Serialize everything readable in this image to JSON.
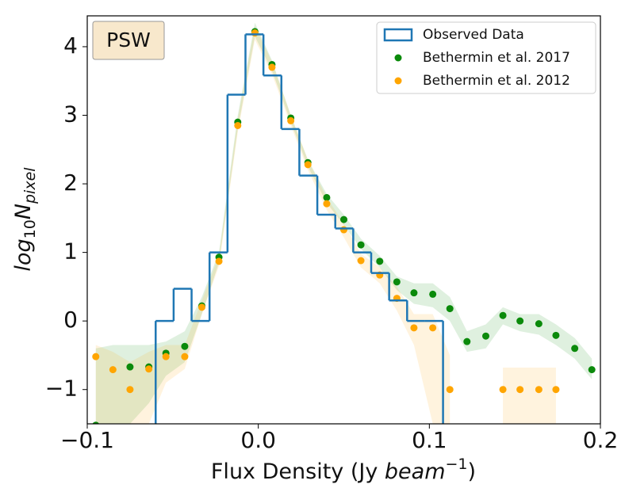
{
  "chart_data": {
    "type": "histogram",
    "annotation": "PSW",
    "xlabel": [
      "Flux Density (Jy ",
      "beam",
      "−1",
      ")"
    ],
    "ylabel": [
      "log",
      "10",
      "N",
      "pixel"
    ],
    "xlim": [
      -0.1,
      0.2
    ],
    "ylim": [
      -1.5,
      4.45
    ],
    "xticks": [
      {
        "value": -0.1,
        "label": "−0.1"
      },
      {
        "value": 0,
        "label": "0.0"
      },
      0.1,
      0.2
    ],
    "yticks": [
      {
        "value": -1,
        "label": "−1"
      },
      0,
      1,
      2,
      3,
      4
    ],
    "legend": "upper right",
    "histogram": {
      "name": "Observed Data",
      "color": "#1f77b4",
      "bins": [
        -0.06,
        -0.0495,
        -0.039,
        -0.0285,
        -0.018,
        -0.0075,
        0.003,
        0.0135,
        0.024,
        0.0345,
        0.045,
        0.0555,
        0.066,
        0.0765,
        0.087,
        0.0975,
        0.108
      ],
      "counts": [
        0,
        0.47,
        0,
        1.0,
        3.3,
        4.18,
        3.58,
        2.8,
        2.12,
        1.55,
        1.35,
        1.0,
        0.7,
        0.3,
        0,
        0
      ]
    },
    "x": [
      -0.095,
      -0.085,
      -0.075,
      -0.064,
      -0.054,
      -0.043,
      -0.033,
      -0.023,
      -0.012,
      -0.002,
      0.008,
      0.019,
      0.029,
      0.04,
      0.05,
      0.06,
      0.071,
      0.081,
      0.091,
      0.102,
      0.112,
      0.122,
      0.133,
      0.143,
      0.153,
      0.164,
      0.174,
      0.185,
      0.195
    ],
    "series": [
      {
        "name": "Bethermin et al. 2017",
        "color": "#0b8a0b",
        "values": [
          -1.52,
          null,
          -0.67,
          -0.67,
          -0.47,
          -0.37,
          0.22,
          0.93,
          2.9,
          4.22,
          3.74,
          2.96,
          2.31,
          1.8,
          1.48,
          1.11,
          0.87,
          0.57,
          0.41,
          0.39,
          0.18,
          -0.3,
          -0.22,
          0.08,
          0.0,
          -0.04,
          -0.21,
          -0.4,
          -0.71
        ],
        "lower": [
          -1.5,
          -1.5,
          -1.5,
          -1.2,
          -0.8,
          -0.6,
          0.1,
          0.85,
          2.8,
          4.15,
          3.65,
          2.9,
          2.25,
          1.72,
          1.4,
          1.05,
          0.78,
          0.45,
          0.25,
          0.2,
          0.0,
          -0.45,
          -0.4,
          -0.05,
          -0.15,
          -0.2,
          -0.35,
          -0.55,
          -0.85
        ],
        "upper": [
          -0.4,
          -0.35,
          -0.35,
          -0.35,
          -0.3,
          -0.15,
          0.35,
          1.0,
          3.0,
          4.35,
          3.8,
          3.0,
          2.35,
          1.85,
          1.55,
          1.2,
          0.95,
          0.65,
          0.55,
          0.55,
          0.35,
          -0.15,
          -0.05,
          0.2,
          0.1,
          0.1,
          -0.05,
          -0.25,
          -0.55
        ]
      },
      {
        "name": "Bethermin et al. 2012",
        "color": "#ffa500",
        "values": [
          -0.52,
          -0.71,
          -1.0,
          -0.7,
          -0.52,
          -0.52,
          0.2,
          0.87,
          2.85,
          4.2,
          3.7,
          2.92,
          2.28,
          1.71,
          1.33,
          0.88,
          0.67,
          0.33,
          -0.1,
          -0.1,
          -1.0,
          null,
          null,
          -1.0,
          -1.0,
          -1.0,
          -1.0,
          null,
          null
        ],
        "lower": [
          -1.5,
          -1.5,
          -1.5,
          -1.5,
          -0.9,
          -0.7,
          0.1,
          0.8,
          2.75,
          4.1,
          3.6,
          2.85,
          2.2,
          1.62,
          1.22,
          0.78,
          0.55,
          0.15,
          -0.35,
          -1.5,
          -1.5,
          null,
          null,
          -1.5,
          -1.5,
          -1.5,
          -1.5,
          null,
          null
        ],
        "upper": [
          -0.35,
          -0.45,
          -0.6,
          -0.45,
          -0.35,
          -0.35,
          0.3,
          0.95,
          2.95,
          4.3,
          3.78,
          3.0,
          2.35,
          1.8,
          1.42,
          0.98,
          0.78,
          0.5,
          0.1,
          0.1,
          -0.5,
          null,
          null,
          -0.68,
          -0.68,
          -0.68,
          -0.68,
          null,
          null
        ]
      }
    ]
  }
}
